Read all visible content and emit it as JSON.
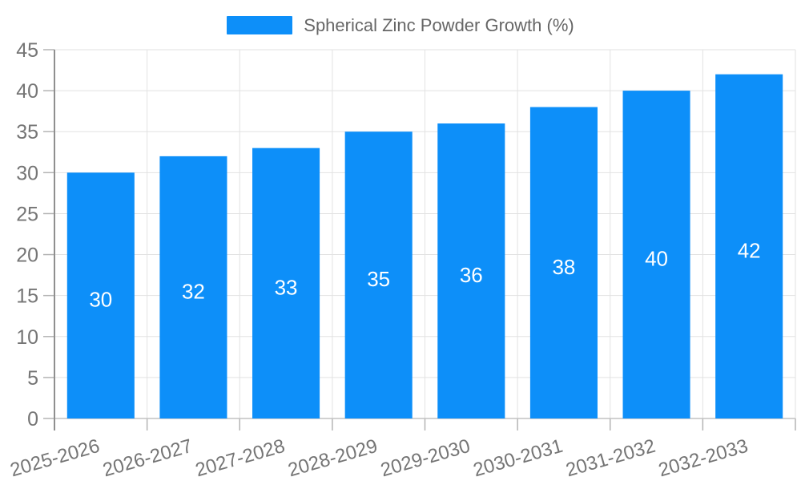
{
  "legend": {
    "label": "Spherical Zinc Powder Growth (%)",
    "swatch_color": "#0d8ff9",
    "position": "top-center"
  },
  "chart_data": {
    "type": "bar",
    "title": "Spherical Zinc Powder Growth (%)",
    "categories": [
      "2025-2026",
      "2026-2027",
      "2027-2028",
      "2028-2029",
      "2029-2030",
      "2030-2031",
      "2031-2032",
      "2032-2033"
    ],
    "values": [
      30,
      32,
      33,
      35,
      36,
      38,
      40,
      42
    ],
    "xlabel": "",
    "ylabel": "",
    "ylim": [
      0,
      45
    ],
    "ytick_step": 5,
    "yticks": [
      0,
      5,
      10,
      15,
      20,
      25,
      30,
      35,
      40,
      45
    ],
    "grid": "horizontal-and-vertical",
    "legend_position": "top-center",
    "x_label_rotation_deg": -16,
    "colors": {
      "bar": "#0d8ff9",
      "value_label": "#ffffff",
      "axis_tick_label": "#757575",
      "legend_text": "#666666",
      "gridline": "#e2e2e2",
      "axis_line": "#8f8f8f",
      "bottom_axis_line": "#c2c2c2",
      "tick_mark": "#b4b4b4",
      "background": "#ffffff"
    }
  }
}
